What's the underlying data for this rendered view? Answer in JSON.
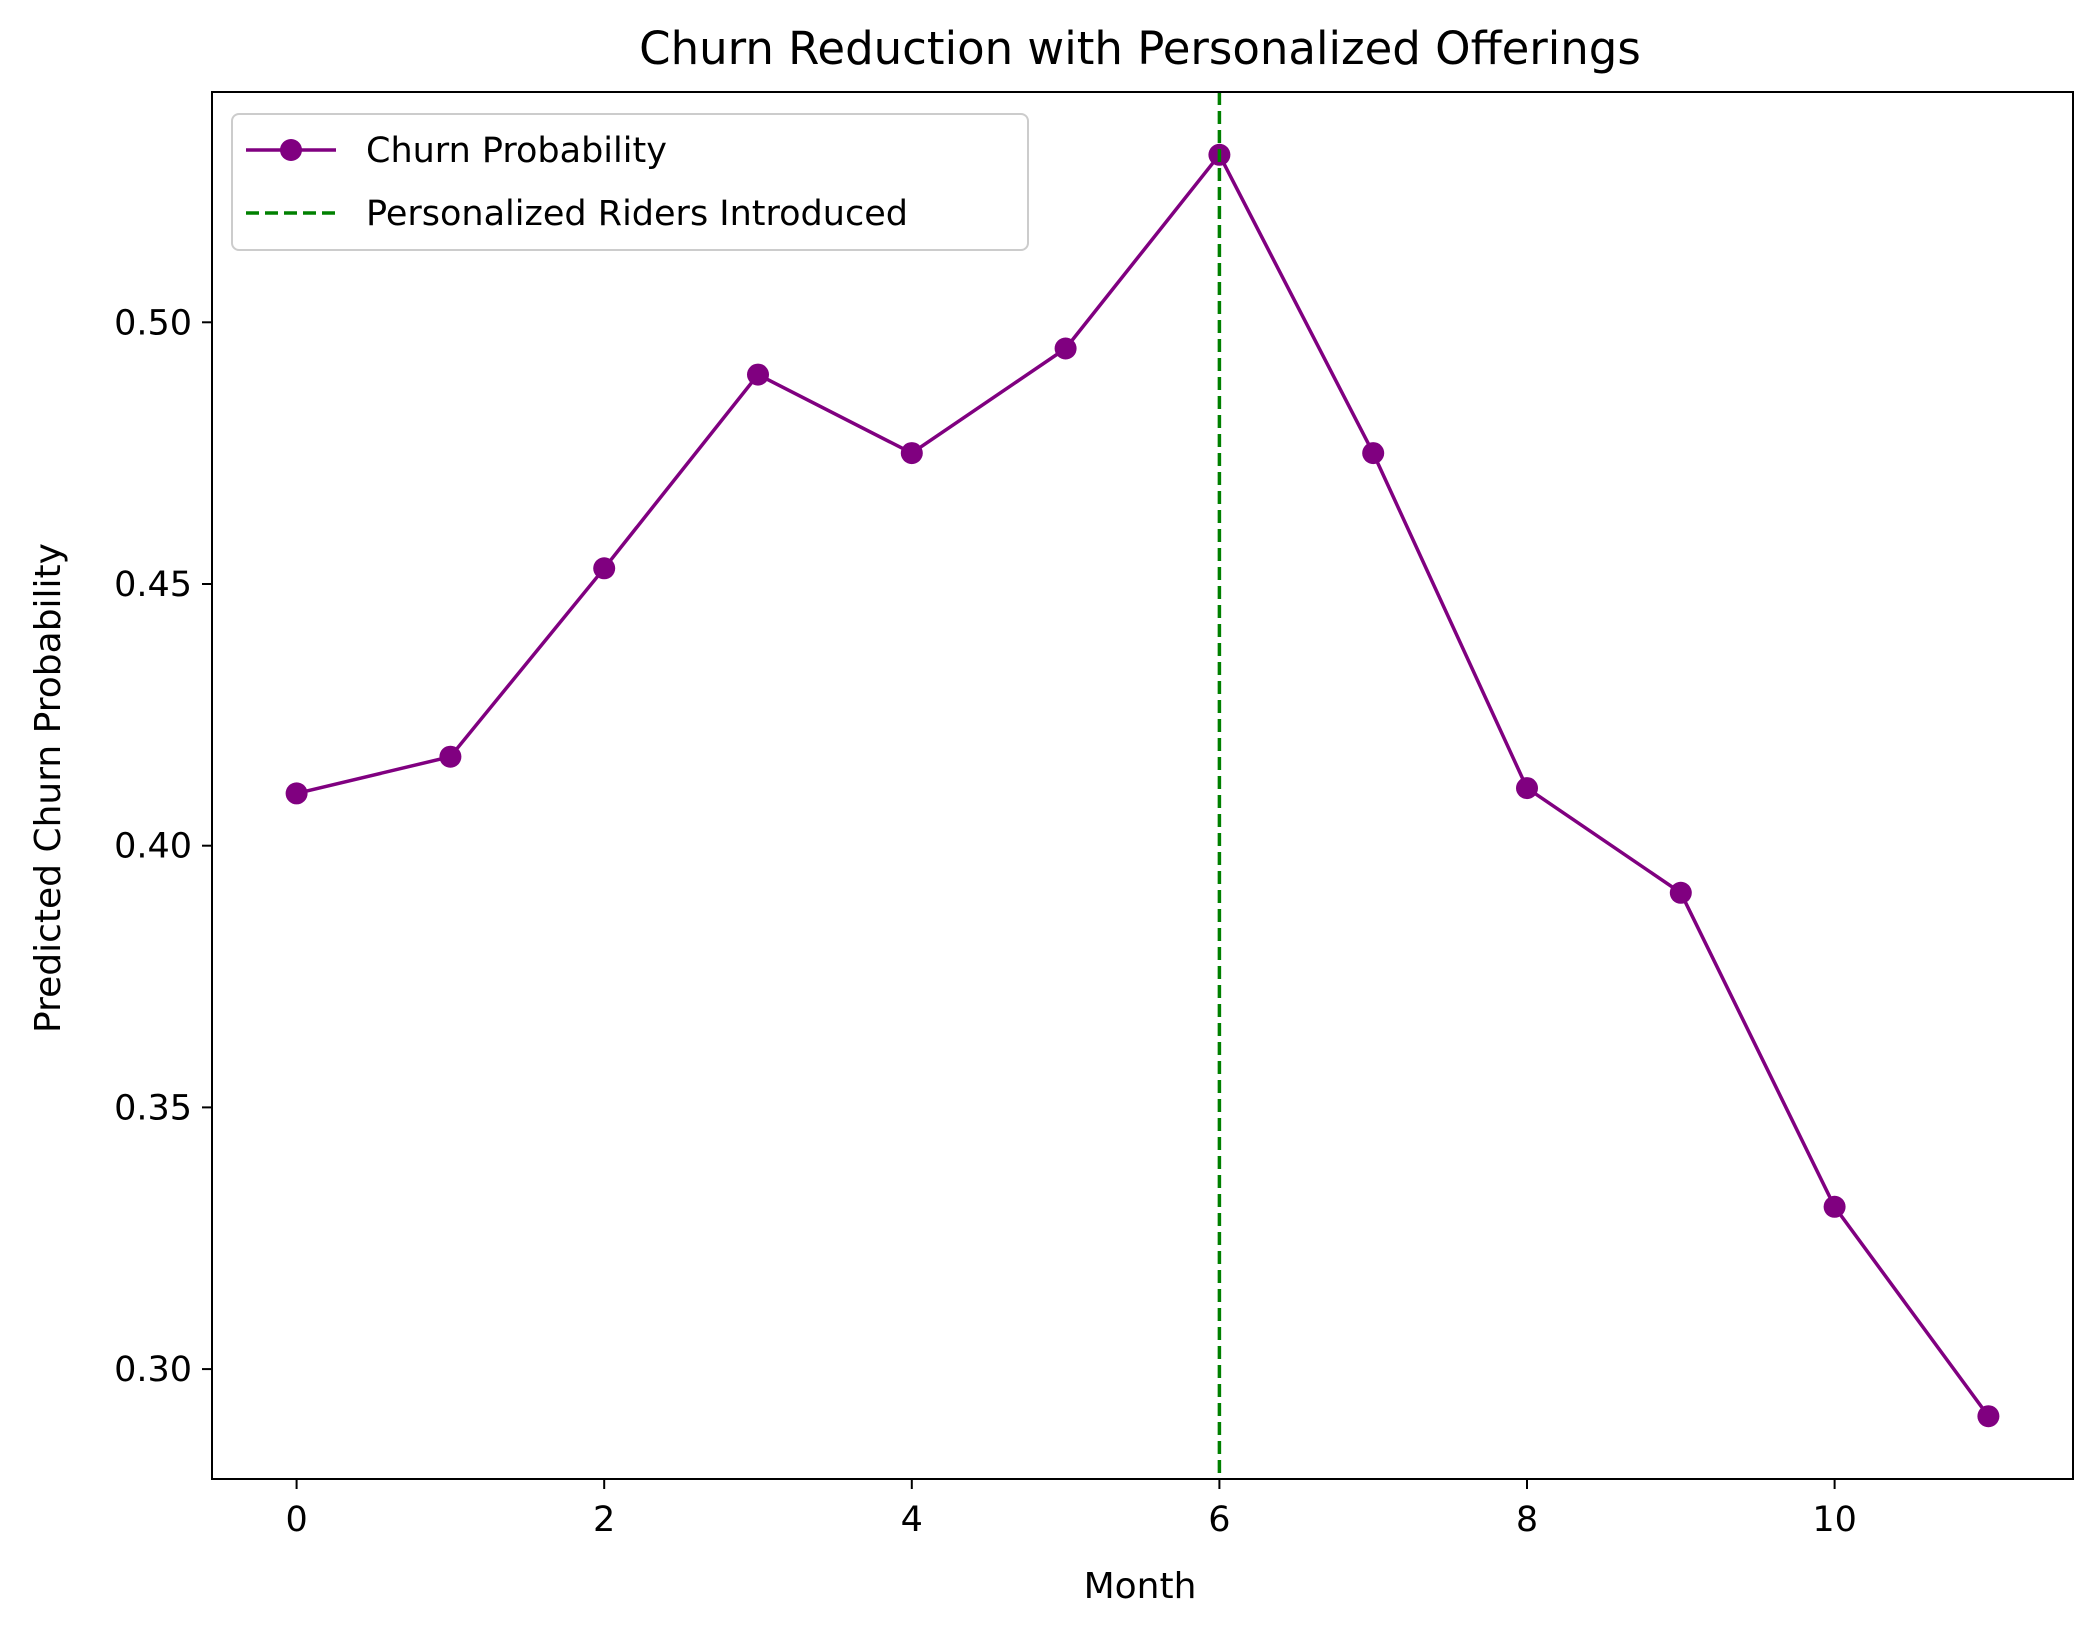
{
  "chart_data": {
    "type": "line",
    "title": "Churn Reduction with Personalized Offerings",
    "xlabel": "Month",
    "ylabel": "Predicted Churn Probability",
    "xlim": [
      -0.55,
      11.55
    ],
    "ylim": [
      0.279,
      0.544
    ],
    "xticks": [
      0,
      2,
      4,
      6,
      8,
      10
    ],
    "xtick_labels": [
      "0",
      "2",
      "4",
      "6",
      "8",
      "10"
    ],
    "yticks": [
      0.3,
      0.35,
      0.4,
      0.45,
      0.5
    ],
    "ytick_labels": [
      "0.30",
      "0.35",
      "0.40",
      "0.45",
      "0.50"
    ],
    "grid": false,
    "legend_position": "top-left",
    "x": [
      0,
      1,
      2,
      3,
      4,
      5,
      6,
      7,
      8,
      9,
      10,
      11
    ],
    "series": [
      {
        "name": "Churn Probability",
        "values": [
          0.41,
          0.417,
          0.453,
          0.49,
          0.475,
          0.495,
          0.532,
          0.475,
          0.411,
          0.391,
          0.331,
          0.291
        ],
        "color": "#800080",
        "marker": "circle"
      }
    ],
    "reference_lines": [
      {
        "name": "Personalized Riders Introduced",
        "x": 6,
        "color": "#008000",
        "style": "dashed"
      }
    ]
  }
}
